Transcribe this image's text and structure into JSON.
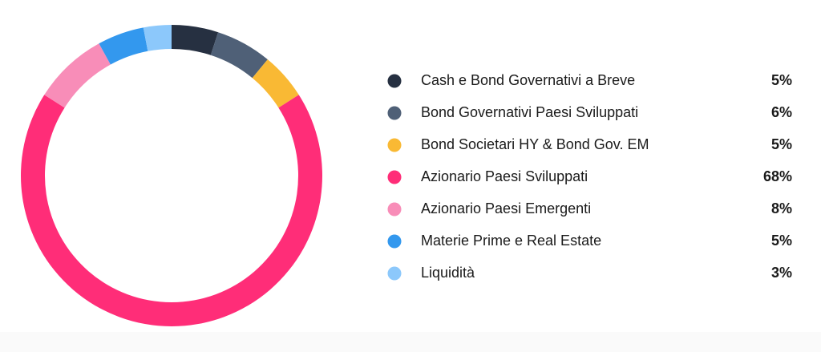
{
  "chart_data": {
    "type": "donut",
    "categories": [
      "Cash e Bond Governativi a Breve",
      "Bond Governativi Paesi Sviluppati",
      "Bond Societari HY & Bond Gov. EM",
      "Azionario Paesi Sviluppati",
      "Azionario Paesi Emergenti",
      "Materie Prime e Real Estate",
      "Liquidità"
    ],
    "values": [
      5,
      6,
      5,
      68,
      8,
      5,
      3
    ],
    "value_labels": [
      "5%",
      "6%",
      "5%",
      "68%",
      "8%",
      "5%",
      "3%"
    ],
    "colors": [
      "#263041",
      "#4f6077",
      "#f9b934",
      "#ff2d78",
      "#f88db8",
      "#3398ee",
      "#8cc8fb"
    ]
  }
}
